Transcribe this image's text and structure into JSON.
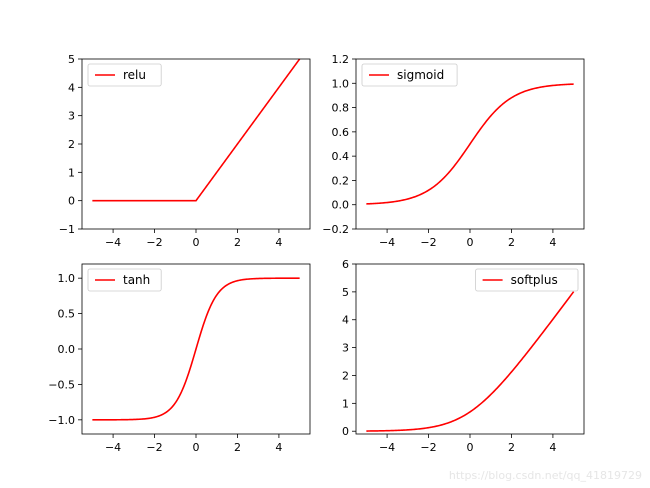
{
  "chart_data": [
    {
      "type": "line",
      "function": "relu",
      "xlim": [
        -5.5,
        5.5
      ],
      "ylim": [
        -1,
        5
      ],
      "xticks": [
        -4,
        -2,
        0,
        2,
        4
      ],
      "yticks": [
        -1,
        0,
        1,
        2,
        3,
        4,
        5
      ],
      "xtick_labels": [
        "−4",
        "−2",
        "0",
        "2",
        "4"
      ],
      "ytick_labels": [
        "−1",
        "0",
        "1",
        "2",
        "3",
        "4",
        "5"
      ],
      "x_range": [
        -5,
        5
      ],
      "series": [
        {
          "name": "relu",
          "color": "#ff0000"
        }
      ],
      "legend": "upper-left",
      "grid": false
    },
    {
      "type": "line",
      "function": "sigmoid",
      "xlim": [
        -5.5,
        5.5
      ],
      "ylim": [
        -0.2,
        1.2
      ],
      "xticks": [
        -4,
        -2,
        0,
        2,
        4
      ],
      "yticks": [
        -0.2,
        0.0,
        0.2,
        0.4,
        0.6,
        0.8,
        1.0,
        1.2
      ],
      "xtick_labels": [
        "−4",
        "−2",
        "0",
        "2",
        "4"
      ],
      "ytick_labels": [
        "−0.2",
        "0.0",
        "0.2",
        "0.4",
        "0.6",
        "0.8",
        "1.0",
        "1.2"
      ],
      "x_range": [
        -5,
        5
      ],
      "series": [
        {
          "name": "sigmoid",
          "color": "#ff0000"
        }
      ],
      "legend": "upper-left",
      "grid": false
    },
    {
      "type": "line",
      "function": "tanh",
      "xlim": [
        -5.5,
        5.5
      ],
      "ylim": [
        -1.2,
        1.2
      ],
      "xticks": [
        -4,
        -2,
        0,
        2,
        4
      ],
      "yticks": [
        -1.0,
        -0.5,
        0.0,
        0.5,
        1.0
      ],
      "xtick_labels": [
        "−4",
        "−2",
        "0",
        "2",
        "4"
      ],
      "ytick_labels": [
        "−1.0",
        "−0.5",
        "0.0",
        "0.5",
        "1.0"
      ],
      "x_range": [
        -5,
        5
      ],
      "series": [
        {
          "name": "tanh",
          "color": "#ff0000"
        }
      ],
      "legend": "upper-left",
      "grid": false
    },
    {
      "type": "line",
      "function": "softplus",
      "xlim": [
        -5.5,
        5.5
      ],
      "ylim": [
        -0.1,
        6
      ],
      "xticks": [
        -4,
        -2,
        0,
        2,
        4
      ],
      "yticks": [
        0,
        1,
        2,
        3,
        4,
        5,
        6
      ],
      "xtick_labels": [
        "−4",
        "−2",
        "0",
        "2",
        "4"
      ],
      "ytick_labels": [
        "0",
        "1",
        "2",
        "3",
        "4",
        "5",
        "6"
      ],
      "x_range": [
        -5,
        5
      ],
      "series": [
        {
          "name": "softplus",
          "color": "#ff0000"
        }
      ],
      "legend": "upper-right",
      "grid": false
    }
  ],
  "watermark": "https://blog.csdn.net/qq_41819729"
}
